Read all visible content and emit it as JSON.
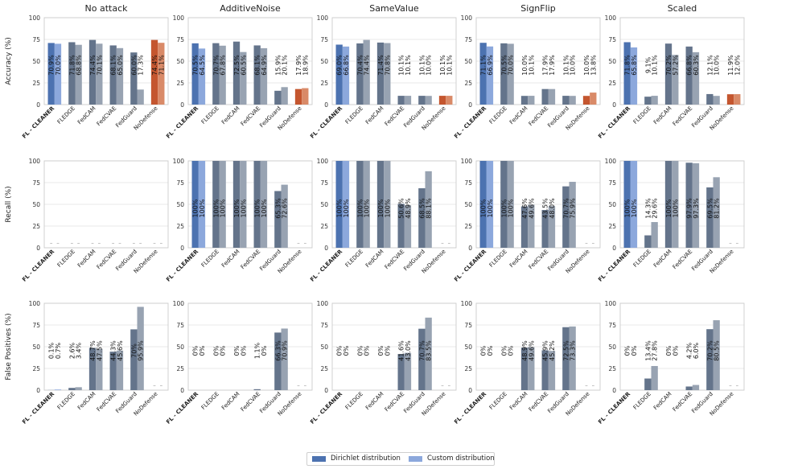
{
  "figure": {
    "columns": [
      "No attack",
      "AdditiveNoise",
      "SameValue",
      "SignFlip",
      "Scaled"
    ],
    "row_labels": [
      "Accuracy (%)",
      "Recall (%)",
      "False Positives (%)"
    ],
    "methods": [
      "FL - CLEANER",
      "FLEDGE",
      "FedCAM",
      "FedCVAE",
      "FedGuard",
      "NoDefense"
    ],
    "y_ticks": [
      "0",
      "25",
      "50",
      "75",
      "100"
    ],
    "empty_marker": "–"
  },
  "legend": {
    "dirichlet": "Dirichlet distribution",
    "custom": "Custom distribution"
  },
  "colors": {
    "fl_dirichlet": "#4c72b0",
    "fl_custom": "#8ca8dc",
    "other_dirichlet": "#64748b",
    "other_custom": "#98a3b2",
    "nodef_dirichlet": "#c4562f",
    "nodef_custom": "#d98a68"
  },
  "chart_data": [
    {
      "type": "bar",
      "metric": "Accuracy",
      "attack": "No attack",
      "title": "No attack",
      "ylabel": "Accuracy (%)",
      "ylim": [
        0,
        100
      ],
      "categories": [
        "FL - CLEANER",
        "FLEDGE",
        "FedCAM",
        "FedCVAE",
        "FedGuard",
        "NoDefense"
      ],
      "series": [
        {
          "name": "Dirichlet distribution",
          "values": [
            70.9,
            71.8,
            74.4,
            68.1,
            60.0,
            74.4
          ],
          "labels": [
            "70.9%",
            "71.8%",
            "74.4%",
            "68.1%",
            "60.0%",
            "74.4%"
          ]
        },
        {
          "name": "Custom distribution",
          "values": [
            70.0,
            68.8,
            70.1,
            65.0,
            17.3,
            71.1
          ],
          "labels": [
            "70.0%",
            "68.8%",
            "70.1%",
            "65.0%",
            "17.3%",
            "71.1%"
          ]
        }
      ]
    },
    {
      "type": "bar",
      "metric": "Accuracy",
      "attack": "AdditiveNoise",
      "title": "AdditiveNoise",
      "ylabel": "",
      "ylim": [
        0,
        100
      ],
      "categories": [
        "FL - CLEANER",
        "FLEDGE",
        "FedCAM",
        "FedCVAE",
        "FedGuard",
        "NoDefense"
      ],
      "series": [
        {
          "name": "Dirichlet distribution",
          "values": [
            70.5,
            70.7,
            72.5,
            68.1,
            15.9,
            17.9
          ],
          "labels": [
            "70.5%",
            "70.7%",
            "72.5%",
            "68.1%",
            "15.9%",
            "17.9%"
          ]
        },
        {
          "name": "Custom distribution",
          "values": [
            64.5,
            67.8,
            60.5,
            64.9,
            20.1,
            18.9
          ],
          "labels": [
            "64.5%",
            "67.8%",
            "60.5%",
            "64.9%",
            "20.1%",
            "18.9%"
          ]
        }
      ]
    },
    {
      "type": "bar",
      "metric": "Accuracy",
      "attack": "SameValue",
      "title": "SameValue",
      "ylabel": "",
      "ylim": [
        0,
        100
      ],
      "categories": [
        "FL - CLEANER",
        "FLEDGE",
        "FedCAM",
        "FedCVAE",
        "FedGuard",
        "NoDefense"
      ],
      "series": [
        {
          "name": "Dirichlet distribution",
          "values": [
            69.0,
            70.4,
            71.4,
            10.1,
            10.1,
            10.1
          ],
          "labels": [
            "69.0%",
            "70.4%",
            "71.4%",
            "10.1%",
            "10.1%",
            "10.1%"
          ]
        },
        {
          "name": "Custom distribution",
          "values": [
            66.8,
            74.4,
            70.8,
            10.1,
            10.0,
            10.1
          ],
          "labels": [
            "66.8%",
            "74.4%",
            "70.8%",
            "10.1%",
            "10.0%",
            "10.1%"
          ]
        }
      ]
    },
    {
      "type": "bar",
      "metric": "Accuracy",
      "attack": "SignFlip",
      "title": "SignFlip",
      "ylabel": "",
      "ylim": [
        0,
        100
      ],
      "categories": [
        "FL - CLEANER",
        "FLEDGE",
        "FedCAM",
        "FedCVAE",
        "FedGuard",
        "NoDefense"
      ],
      "series": [
        {
          "name": "Dirichlet distribution",
          "values": [
            71.1,
            70.5,
            10.0,
            17.9,
            10.1,
            10.0
          ],
          "labels": [
            "71.1%",
            "70.5%",
            "10.0%",
            "17.9%",
            "10.1%",
            "10.0%"
          ]
        },
        {
          "name": "Custom distribution",
          "values": [
            66.9,
            70.0,
            10.1,
            17.9,
            10.0,
            13.8
          ],
          "labels": [
            "66.9%",
            "70.0%",
            "10.1%",
            "17.9%",
            "10.0%",
            "13.8%"
          ]
        }
      ]
    },
    {
      "type": "bar",
      "metric": "Accuracy",
      "attack": "Scaled",
      "title": "Scaled",
      "ylabel": "",
      "ylim": [
        0,
        100
      ],
      "categories": [
        "FL - CLEANER",
        "FLEDGE",
        "FedCAM",
        "FedCVAE",
        "FedGuard",
        "NoDefense"
      ],
      "series": [
        {
          "name": "Dirichlet distribution",
          "values": [
            71.8,
            9.1,
            70.2,
            66.8,
            12.1,
            11.9
          ],
          "labels": [
            "71.8%",
            "9.1%",
            "70.2%",
            "66.8%",
            "12.1%",
            "11.9%"
          ]
        },
        {
          "name": "Custom distribution",
          "values": [
            65.8,
            10.1,
            57.2,
            60.3,
            10.0,
            12.0
          ],
          "labels": [
            "65.8%",
            "10.1%",
            "57.2%",
            "60.3%",
            "10.0%",
            "12.0%"
          ]
        }
      ]
    },
    {
      "type": "bar",
      "metric": "Recall",
      "attack": "No attack",
      "title": "",
      "ylabel": "Recall (%)",
      "ylim": [
        0,
        100
      ],
      "categories": [
        "FL - CLEANER",
        "FLEDGE",
        "FedCAM",
        "FedCVAE",
        "FedGuard",
        "NoDefense"
      ],
      "series": [
        {
          "name": "Dirichlet distribution",
          "values": [
            null,
            null,
            null,
            null,
            null,
            null
          ],
          "labels": [
            "",
            "",
            "",
            "",
            "",
            ""
          ]
        },
        {
          "name": "Custom distribution",
          "values": [
            null,
            null,
            null,
            null,
            null,
            null
          ],
          "labels": [
            "",
            "",
            "",
            "",
            "",
            ""
          ]
        }
      ]
    },
    {
      "type": "bar",
      "metric": "Recall",
      "attack": "AdditiveNoise",
      "title": "",
      "ylabel": "",
      "ylim": [
        0,
        100
      ],
      "categories": [
        "FL - CLEANER",
        "FLEDGE",
        "FedCAM",
        "FedCVAE",
        "FedGuard",
        "NoDefense"
      ],
      "series": [
        {
          "name": "Dirichlet distribution",
          "values": [
            100,
            100,
            100,
            100,
            65.3,
            null
          ],
          "labels": [
            "100%",
            "100%",
            "100%",
            "100%",
            "65.3%",
            ""
          ]
        },
        {
          "name": "Custom distribution",
          "values": [
            100,
            100,
            100,
            100,
            72.6,
            null
          ],
          "labels": [
            "100%",
            "100%",
            "100%",
            "100%",
            "72.6%",
            ""
          ]
        }
      ]
    },
    {
      "type": "bar",
      "metric": "Recall",
      "attack": "SameValue",
      "title": "",
      "ylabel": "",
      "ylim": [
        0,
        100
      ],
      "categories": [
        "FL - CLEANER",
        "FLEDGE",
        "FedCAM",
        "FedCVAE",
        "FedGuard",
        "NoDefense"
      ],
      "series": [
        {
          "name": "Dirichlet distribution",
          "values": [
            100,
            100,
            100,
            50.6,
            68.5,
            null
          ],
          "labels": [
            "100%",
            "100%",
            "100%",
            "50.6%",
            "68.5%",
            ""
          ]
        },
        {
          "name": "Custom distribution",
          "values": [
            100,
            100,
            100,
            48.9,
            88.1,
            null
          ],
          "labels": [
            "100%",
            "100%",
            "100%",
            "48.9%",
            "88.1%",
            ""
          ]
        }
      ]
    },
    {
      "type": "bar",
      "metric": "Recall",
      "attack": "SignFlip",
      "title": "",
      "ylabel": "",
      "ylim": [
        0,
        100
      ],
      "categories": [
        "FL - CLEANER",
        "FLEDGE",
        "FedCAM",
        "FedCVAE",
        "FedGuard",
        "NoDefense"
      ],
      "series": [
        {
          "name": "Dirichlet distribution",
          "values": [
            100,
            100,
            47.6,
            43.5,
            70.7,
            null
          ],
          "labels": [
            "100%",
            "100%",
            "47.6%",
            "43.5%",
            "70.7%",
            ""
          ]
        },
        {
          "name": "Custom distribution",
          "values": [
            100,
            100,
            49.6,
            48.0,
            75.9,
            null
          ],
          "labels": [
            "100%",
            "100%",
            "49.6%",
            "48.0%",
            "75.9%",
            ""
          ]
        }
      ]
    },
    {
      "type": "bar",
      "metric": "Recall",
      "attack": "Scaled",
      "title": "",
      "ylabel": "",
      "ylim": [
        0,
        100
      ],
      "categories": [
        "FL - CLEANER",
        "FLEDGE",
        "FedCAM",
        "FedCVAE",
        "FedGuard",
        "NoDefense"
      ],
      "series": [
        {
          "name": "Dirichlet distribution",
          "values": [
            100,
            14.3,
            100,
            97.9,
            69.5,
            null
          ],
          "labels": [
            "100%",
            "14.3%",
            "100%",
            "97.9%",
            "69.5%",
            ""
          ]
        },
        {
          "name": "Custom distribution",
          "values": [
            100,
            29.6,
            100,
            97.3,
            81.2,
            null
          ],
          "labels": [
            "100%",
            "29.6%",
            "100%",
            "97.3%",
            "81.2%",
            ""
          ]
        }
      ]
    },
    {
      "type": "bar",
      "metric": "False Positives",
      "attack": "No attack",
      "title": "",
      "ylabel": "False Positives (%)",
      "ylim": [
        0,
        100
      ],
      "categories": [
        "FL - CLEANER",
        "FLEDGE",
        "FedCAM",
        "FedCVAE",
        "FedGuard",
        "NoDefense"
      ],
      "series": [
        {
          "name": "Dirichlet distribution",
          "values": [
            0.1,
            2.6,
            48.7,
            44.3,
            70,
            null
          ],
          "labels": [
            "0.1%",
            "2.6%",
            "48.7%",
            "44.3%",
            "70%",
            ""
          ]
        },
        {
          "name": "Custom distribution",
          "values": [
            0.7,
            3.4,
            47.5,
            45.6,
            95.9,
            null
          ],
          "labels": [
            "0.7%",
            "3.4%",
            "47.5%",
            "45.6%",
            "95.9%",
            ""
          ]
        }
      ]
    },
    {
      "type": "bar",
      "metric": "False Positives",
      "attack": "AdditiveNoise",
      "title": "",
      "ylabel": "",
      "ylim": [
        0,
        100
      ],
      "categories": [
        "FL - CLEANER",
        "FLEDGE",
        "FedCAM",
        "FedCVAE",
        "FedGuard",
        "NoDefense"
      ],
      "series": [
        {
          "name": "Dirichlet distribution",
          "values": [
            0,
            0,
            0,
            1.1,
            66.3,
            null
          ],
          "labels": [
            "0%",
            "0%",
            "0%",
            "1.1%",
            "66.3%",
            ""
          ]
        },
        {
          "name": "Custom distribution",
          "values": [
            0,
            0,
            0,
            0,
            70.9,
            null
          ],
          "labels": [
            "0%",
            "0%",
            "0%",
            "0%",
            "70.9%",
            ""
          ]
        }
      ]
    },
    {
      "type": "bar",
      "metric": "False Positives",
      "attack": "SameValue",
      "title": "",
      "ylabel": "",
      "ylim": [
        0,
        100
      ],
      "categories": [
        "FL - CLEANER",
        "FLEDGE",
        "FedCAM",
        "FedCVAE",
        "FedGuard",
        "NoDefense"
      ],
      "series": [
        {
          "name": "Dirichlet distribution",
          "values": [
            0,
            0,
            0,
            41.6,
            70.7,
            null
          ],
          "labels": [
            "0%",
            "0%",
            "0%",
            "41.6%",
            "70.7%",
            ""
          ]
        },
        {
          "name": "Custom distribution",
          "values": [
            0,
            0,
            0,
            43.0,
            83.5,
            null
          ],
          "labels": [
            "0%",
            "0%",
            "0%",
            "43.0%",
            "83.5%",
            ""
          ]
        }
      ]
    },
    {
      "type": "bar",
      "metric": "False Positives",
      "attack": "SignFlip",
      "title": "",
      "ylabel": "",
      "ylim": [
        0,
        100
      ],
      "categories": [
        "FL - CLEANER",
        "FLEDGE",
        "FedCAM",
        "FedCVAE",
        "FedGuard",
        "NoDefense"
      ],
      "series": [
        {
          "name": "Dirichlet distribution",
          "values": [
            0,
            0,
            48.9,
            45.9,
            72.5,
            null
          ],
          "labels": [
            "0%",
            "0%",
            "48.9%",
            "45.9%",
            "72.5%",
            ""
          ]
        },
        {
          "name": "Custom distribution",
          "values": [
            0,
            0,
            49.6,
            45.2,
            73.3,
            null
          ],
          "labels": [
            "0%",
            "0%",
            "49.6%",
            "45.2%",
            "73.3%",
            ""
          ]
        }
      ]
    },
    {
      "type": "bar",
      "metric": "False Positives",
      "attack": "Scaled",
      "title": "",
      "ylabel": "",
      "ylim": [
        0,
        100
      ],
      "categories": [
        "FL - CLEANER",
        "FLEDGE",
        "FedCAM",
        "FedCVAE",
        "FedGuard",
        "NoDefense"
      ],
      "series": [
        {
          "name": "Dirichlet distribution",
          "values": [
            0,
            13.4,
            0,
            4.2,
            70.2,
            null
          ],
          "labels": [
            "0%",
            "13.4%",
            "0%",
            "4.2%",
            "70.2%",
            ""
          ]
        },
        {
          "name": "Custom distribution",
          "values": [
            0,
            27.8,
            0,
            6.0,
            80.5,
            null
          ],
          "labels": [
            "0%",
            "27.8%",
            "0%",
            "6.0%",
            "80.5%",
            ""
          ]
        }
      ]
    }
  ]
}
